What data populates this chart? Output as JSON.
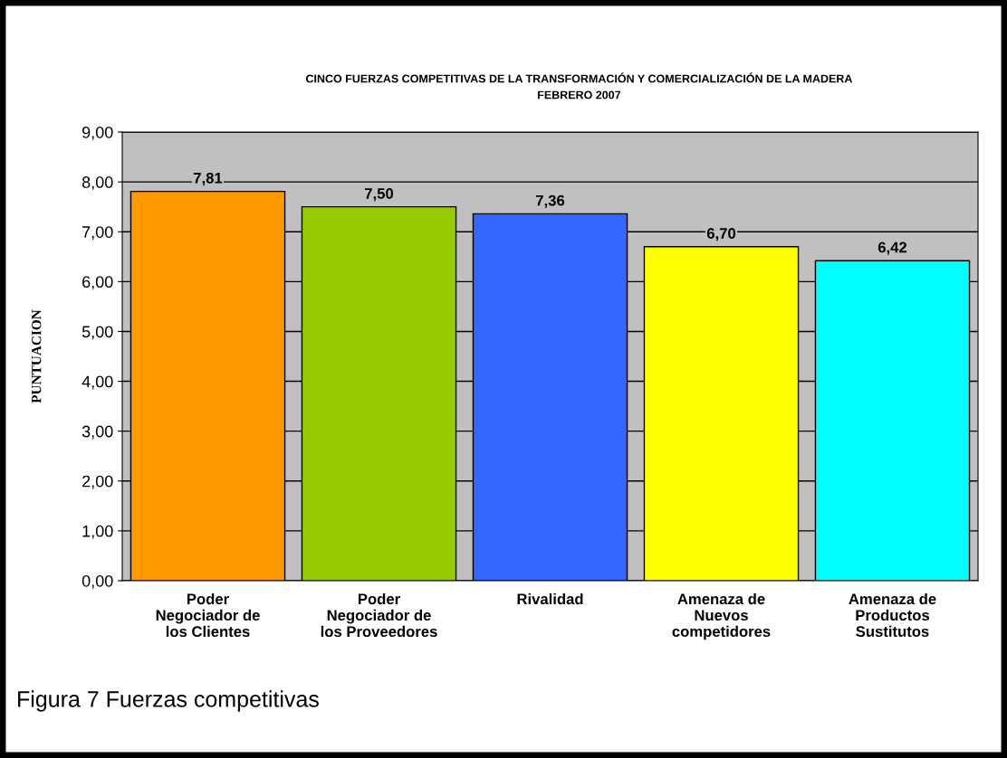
{
  "chart_data": {
    "type": "bar",
    "title": "CINCO FUERZAS COMPETITIVAS DE LA TRANSFORMACIÓN Y COMERCIALIZACIÓN DE LA MADERA",
    "subtitle": "FEBRERO 2007",
    "ylabel": "PUNTUACION",
    "categories": [
      "Poder\nNegociador de\nlos Clientes",
      "Poder\nNegociador de\nlos Proveedores",
      "Rivalidad",
      "Amenaza de\nNuevos\ncompetidores",
      "Amenaza de\nProductos\nSustitutos"
    ],
    "values": [
      7.81,
      7.5,
      7.36,
      6.7,
      6.42
    ],
    "colors": [
      "#ff9900",
      "#99cc00",
      "#3366ff",
      "#ffff00",
      "#00ffff"
    ],
    "value_labels": [
      "7,81",
      "7,50",
      "7,36",
      "6,70",
      "6,42"
    ],
    "ylim": [
      0,
      9
    ],
    "yticks": [
      {
        "value": 0,
        "label": "0,00"
      },
      {
        "value": 1,
        "label": "1,00"
      },
      {
        "value": 2,
        "label": "2,00"
      },
      {
        "value": 3,
        "label": "3,00"
      },
      {
        "value": 4,
        "label": "4,00"
      },
      {
        "value": 5,
        "label": "5,00"
      },
      {
        "value": 6,
        "label": "6,00"
      },
      {
        "value": 7,
        "label": "7,00"
      },
      {
        "value": 8,
        "label": "8,00"
      },
      {
        "value": 9,
        "label": "9,00"
      }
    ],
    "grid": "y",
    "legend": false,
    "annotations": [
      "Figura 7 Fuerzas competitivas"
    ]
  }
}
